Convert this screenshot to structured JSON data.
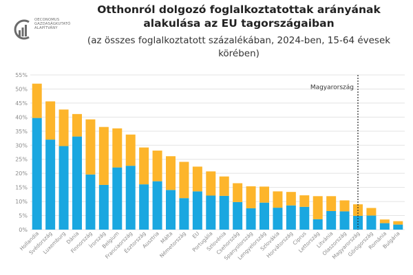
{
  "header": {
    "logo_lines": [
      "OECONOMUS",
      "GAZDASÁGKUTATÓ",
      "ALAPÍTVÁNY"
    ],
    "title": "Otthonról dolgozó foglalkoztatottak arányának alakulása az EU tagországaiban",
    "subtitle": "(az összes foglalkoztatott százalékában, 2024-ben, 15-64 évesek körében)"
  },
  "colors": {
    "regular": "#1aa7e0",
    "occasional": "#fdb52b",
    "grid": "#e3e3e3",
    "marker": "#222222"
  },
  "chart_data": {
    "type": "bar",
    "stacked": true,
    "title": "Otthonról dolgozó foglalkoztatottak arányának alakulása az EU tagországaiban",
    "subtitle": "(az összes foglalkoztatott százalékában, 2024-ben, 15-64 évesek körében)",
    "categories": [
      "Hollandia",
      "Svédország",
      "Luxemburg",
      "Dánia",
      "Finnország",
      "Írország",
      "Belgium",
      "Franciaország",
      "Észtország",
      "Ausztria",
      "Málta",
      "Németország",
      "EU",
      "Portugália",
      "Szlovénia",
      "Csehország",
      "Spanyolország",
      "Lengyelország",
      "Szlovákia",
      "Horvátország",
      "Ciprus",
      "Lettország",
      "Litvánia",
      "Olaszország",
      "Magyarország",
      "Görögország",
      "Románia",
      "Bulgária"
    ],
    "series": [
      {
        "values": [
          39.7,
          32.0,
          29.7,
          33.1,
          19.6,
          15.9,
          22.1,
          22.7,
          16.1,
          17.2,
          14.1,
          11.2,
          13.6,
          12.1,
          12.0,
          9.8,
          7.6,
          9.6,
          7.8,
          8.6,
          8.1,
          3.7,
          6.6,
          6.5,
          4.9,
          5.0,
          2.3,
          1.8
        ]
      },
      {
        "values": [
          12.2,
          13.6,
          13.0,
          8.0,
          19.6,
          20.6,
          13.9,
          11.1,
          13.1,
          10.9,
          12.0,
          12.9,
          8.8,
          8.6,
          6.9,
          6.7,
          7.8,
          5.7,
          5.8,
          4.8,
          4.1,
          8.2,
          5.3,
          3.9,
          4.1,
          2.7,
          1.3,
          1.2
        ]
      }
    ],
    "ylim": [
      0,
      55
    ],
    "yticks": [
      0,
      5,
      10,
      15,
      20,
      25,
      30,
      35,
      40,
      45,
      50,
      55
    ],
    "ytick_suffix": "%",
    "grid": true,
    "highlight": {
      "category": "Magyarország",
      "label": "Magyarország"
    }
  }
}
